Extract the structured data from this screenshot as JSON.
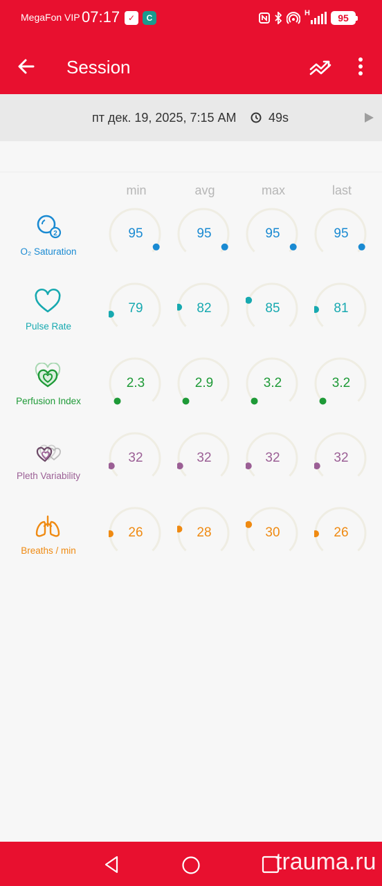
{
  "status_bar": {
    "carrier": "MegaFon VIP",
    "time": "07:17",
    "network": "H",
    "battery": "95"
  },
  "app_bar": {
    "title": "Session"
  },
  "session": {
    "date": "пт дек. 19, 2025, 7:15 AM",
    "duration": "49s"
  },
  "columns": [
    "min",
    "avg",
    "max",
    "last"
  ],
  "parameters": [
    {
      "label": "O₂ Saturation",
      "icon": "o2-icon",
      "color": "#1a8ad2",
      "values": [
        "95",
        "95",
        "95",
        "95"
      ],
      "gauge_levels": [
        0.95,
        0.95,
        0.95,
        0.95
      ]
    },
    {
      "label": "Pulse Rate",
      "icon": "heart-icon",
      "color": "#17a9b0",
      "values": [
        "79",
        "82",
        "85",
        "81"
      ],
      "gauge_levels": [
        0.12,
        0.18,
        0.24,
        0.16
      ]
    },
    {
      "label": "Perfusion Index",
      "icon": "perfusion-heart-icon",
      "color": "#1e9a37",
      "values": [
        "2.3",
        "2.9",
        "3.2",
        "3.2"
      ],
      "gauge_levels": [
        0.0,
        0.0,
        0.0,
        0.0
      ]
    },
    {
      "label": "Pleth Variability",
      "icon": "pleth-hearts-icon",
      "color": "#9b5f95",
      "values": [
        "32",
        "32",
        "32",
        "32"
      ],
      "gauge_levels": [
        0.1,
        0.1,
        0.1,
        0.1
      ]
    },
    {
      "label": "Breaths / min",
      "icon": "lungs-icon",
      "color": "#ef8a12",
      "values": [
        "26",
        "28",
        "30",
        "26"
      ],
      "gauge_levels": [
        0.16,
        0.2,
        0.24,
        0.16
      ]
    }
  ],
  "watermark": "trauma.ru",
  "colors": {
    "accent": "#e8102f",
    "gauge_track": "#efede3"
  }
}
